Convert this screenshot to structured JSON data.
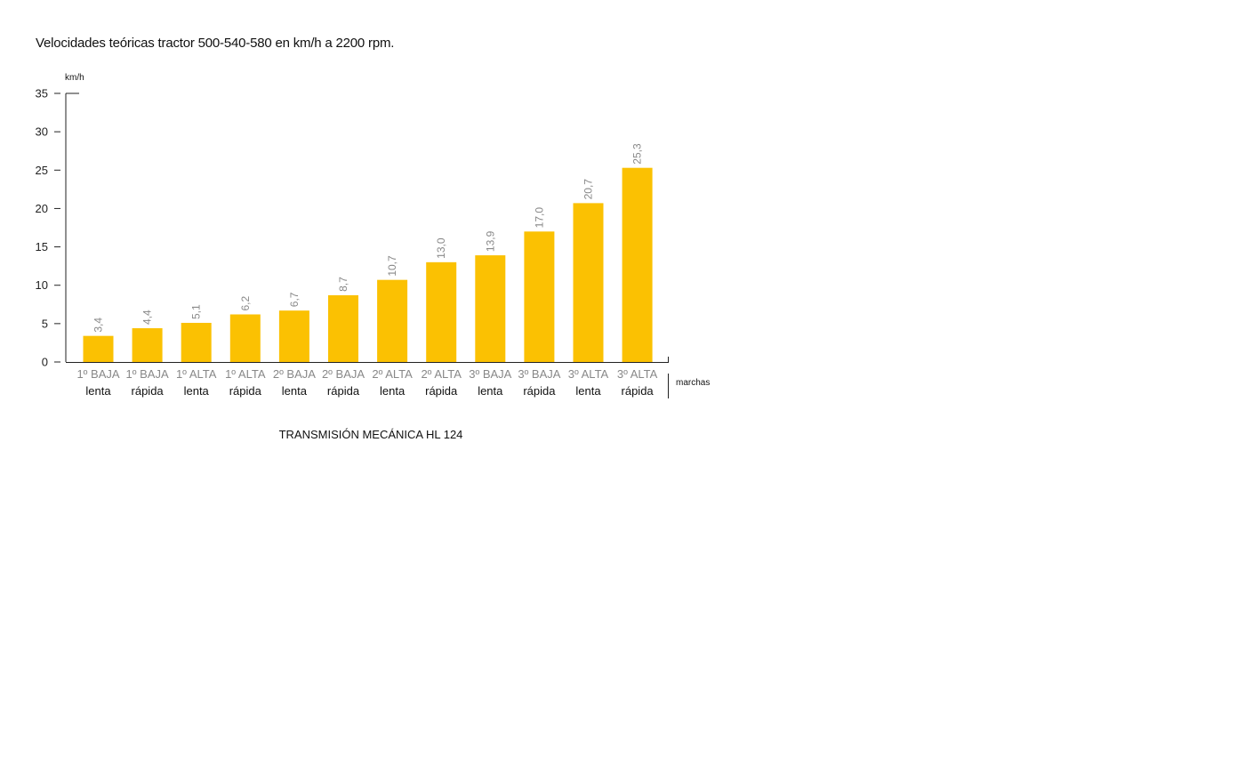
{
  "chart_data": {
    "type": "bar",
    "title": "Velocidades teóricas tractor 500-540-580 en km/h a 2200 rpm.",
    "ylabel": "km/h",
    "xlabel": "marchas",
    "caption": "TRANSMISIÓN MECÁNICA HL 124",
    "ylim": [
      0,
      35
    ],
    "yticks": [
      "0",
      "5",
      "10",
      "15",
      "20",
      "25",
      "30",
      "35"
    ],
    "categories": [
      {
        "line1": "1º BAJA",
        "line2": "lenta"
      },
      {
        "line1": "1º BAJA",
        "line2": "rápida"
      },
      {
        "line1": "1º ALTA",
        "line2": "lenta"
      },
      {
        "line1": "1º ALTA",
        "line2": "rápida"
      },
      {
        "line1": "2º BAJA",
        "line2": "lenta"
      },
      {
        "line1": "2º BAJA",
        "line2": "rápida"
      },
      {
        "line1": "2º ALTA",
        "line2": "lenta"
      },
      {
        "line1": "2º ALTA",
        "line2": "rápida"
      },
      {
        "line1": "3º BAJA",
        "line2": "lenta"
      },
      {
        "line1": "3º BAJA",
        "line2": "rápida"
      },
      {
        "line1": "3º ALTA",
        "line2": "lenta"
      },
      {
        "line1": "3º ALTA",
        "line2": "rápida"
      }
    ],
    "values": [
      3.4,
      4.4,
      5.1,
      6.2,
      6.7,
      8.7,
      10.7,
      13.0,
      13.9,
      17.0,
      20.7,
      25.3
    ],
    "value_labels": [
      "3,4",
      "4,4",
      "5,1",
      "6,2",
      "6,7",
      "8,7",
      "10,7",
      "13,0",
      "13,9",
      "17,0",
      "20,7",
      "25,3"
    ],
    "grid": false,
    "colors": {
      "bar": "#FBC102",
      "value_label": "#888888",
      "axis": "#222222"
    }
  }
}
